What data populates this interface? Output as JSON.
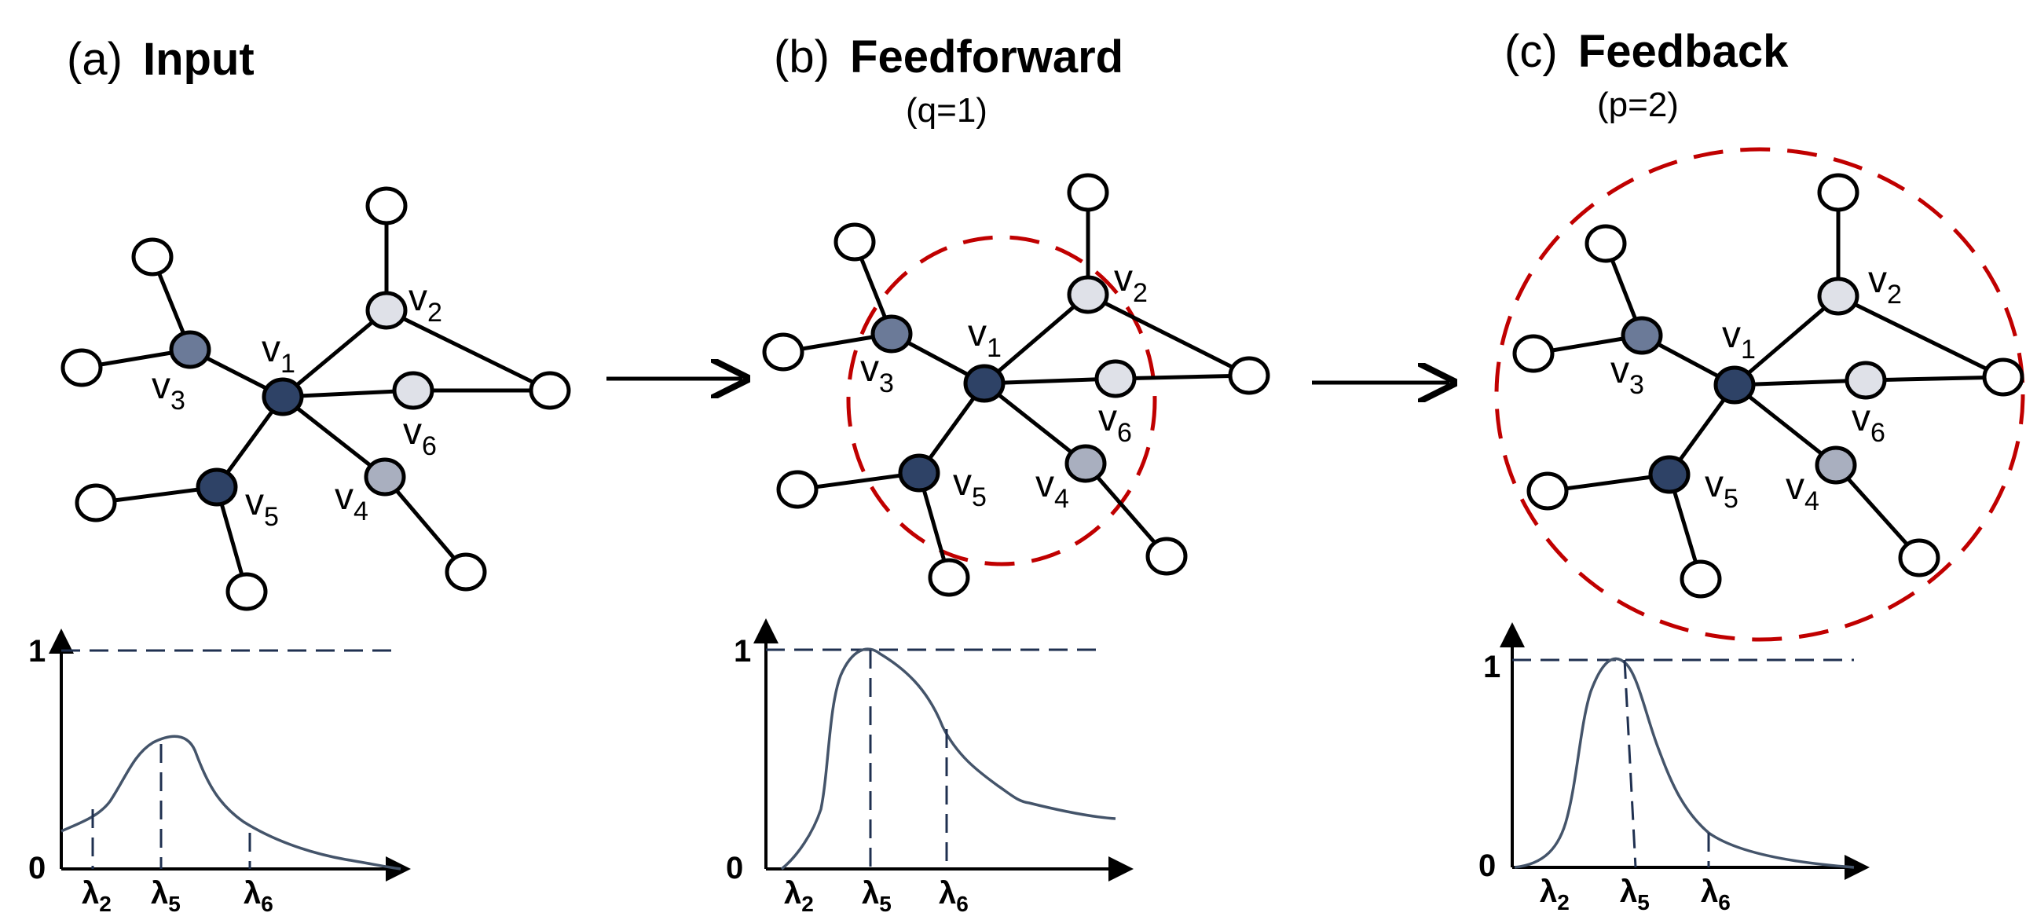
{
  "colors": {
    "dark_node": "#2e4266",
    "mid_node": "#6b7a98",
    "light_node": "#a9afbf",
    "lightest_node": "#dfe1e8",
    "empty_node": "#ffffff",
    "ring": "#c00000",
    "curve": "#44546a"
  },
  "panels": [
    {
      "letter": "(a)",
      "title": "Input",
      "subtitle": "",
      "ring": false,
      "plot": {
        "y_max_label": "1",
        "y_zero_label": "0",
        "markers": [
          {
            "symbol": "λ",
            "index": "2"
          },
          {
            "symbol": "λ",
            "index": "5"
          },
          {
            "symbol": "λ",
            "index": "6"
          }
        ]
      }
    },
    {
      "letter": "(b)",
      "title": "Feedforward",
      "subtitle": "(q=1)",
      "ring": true,
      "plot": {
        "y_max_label": "1",
        "y_zero_label": "0",
        "markers": [
          {
            "symbol": "λ",
            "index": "2"
          },
          {
            "symbol": "λ",
            "index": "5"
          },
          {
            "symbol": "λ",
            "index": "6"
          }
        ]
      }
    },
    {
      "letter": "(c)",
      "title": "Feedback",
      "subtitle": "(p=2)",
      "ring": true,
      "plot": {
        "y_max_label": "1",
        "y_zero_label": "0",
        "markers": [
          {
            "symbol": "λ",
            "index": "2"
          },
          {
            "symbol": "λ",
            "index": "5"
          },
          {
            "symbol": "λ",
            "index": "6"
          }
        ]
      }
    }
  ],
  "node_labels": [
    {
      "letter": "v",
      "index": "1"
    },
    {
      "letter": "v",
      "index": "2"
    },
    {
      "letter": "v",
      "index": "3"
    },
    {
      "letter": "v",
      "index": "4"
    },
    {
      "letter": "v",
      "index": "5"
    },
    {
      "letter": "v",
      "index": "6"
    }
  ]
}
